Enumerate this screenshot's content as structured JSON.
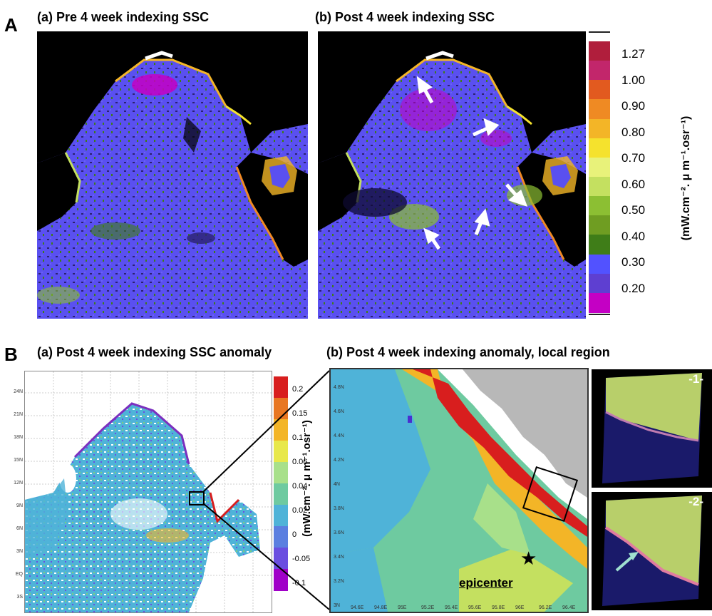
{
  "panelA": {
    "letter": "A",
    "titles": [
      "(a) Pre 4 week indexing SSC",
      "(b) Post 4 week indexing SSC"
    ],
    "colorbar": {
      "labels": [
        "1.27",
        "1.00",
        "0.90",
        "0.80",
        "0.70",
        "0.60",
        "0.50",
        "0.40",
        "0.30",
        "0.20"
      ],
      "unit": "(mW.cm⁻². μ m⁻¹.osr⁻¹)",
      "colors": [
        "#b01e3c",
        "#c2266b",
        "#e25a1f",
        "#ef8a23",
        "#f3b527",
        "#f5e22d",
        "#e8f27a",
        "#c4e060",
        "#8cbf33",
        "#6f9d22",
        "#3f7d18",
        "#5252ff",
        "#5e3fd1",
        "#c400c4"
      ]
    }
  },
  "panelB": {
    "letter": "B",
    "titles": [
      "(a) Post 4 week indexing SSC anomaly",
      "(b) Post 4 week indexing anomaly, local region"
    ],
    "lat_ticks_left": [
      "24N",
      "21N",
      "18N",
      "15N",
      "12N",
      "9N",
      "6N",
      "3N",
      "EQ",
      "3S"
    ],
    "colorbar": {
      "labels": [
        "0.2",
        "0.15",
        "0.1",
        "0.06",
        "0.04",
        "0.02",
        "0",
        "-0.05",
        "-0.1"
      ],
      "unit": "(mW.cm⁻². μ m⁻¹.osr⁻¹)"
    },
    "local": {
      "lat_ticks": [
        "4.8N",
        "4.6N",
        "4.4N",
        "4.2N",
        "4N",
        "3.8N",
        "3.6N",
        "3.4N",
        "3.2N",
        "3N"
      ],
      "lon_ticks": [
        "94.6E",
        "94.8E",
        "95E",
        "95.2E",
        "95.4E",
        "95.6E",
        "95.8E",
        "96E",
        "96.2E",
        "96.4E"
      ],
      "epicenter_label": "epicenter"
    },
    "insets": [
      "-1-",
      "-2-"
    ]
  }
}
